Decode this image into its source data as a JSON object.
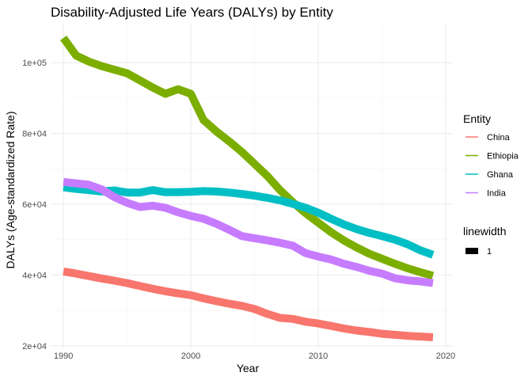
{
  "chart_data": {
    "type": "line",
    "title": "Disability-Adjusted Life Years (DALYs) by Entity",
    "xlabel": "Year",
    "ylabel": "DALYs (Age-standardized Rate)",
    "xlim": [
      1989,
      2020.5
    ],
    "ylim": [
      19500,
      111000
    ],
    "x_ticks": [
      1990,
      2000,
      2010,
      2020
    ],
    "x_tick_labels": [
      "1990",
      "2000",
      "2010",
      "2020"
    ],
    "y_ticks": [
      20000,
      40000,
      60000,
      80000,
      100000
    ],
    "y_tick_labels": [
      "2e+04",
      "4e+04",
      "6e+04",
      "8e+04",
      "1e+05"
    ],
    "grid": true,
    "legend_placement": "right",
    "legend_title": "Entity",
    "x": [
      1990,
      1991,
      1992,
      1993,
      1994,
      1995,
      1996,
      1997,
      1998,
      1999,
      2000,
      2001,
      2002,
      2003,
      2004,
      2005,
      2006,
      2007,
      2008,
      2009,
      2010,
      2011,
      2012,
      2013,
      2014,
      2015,
      2016,
      2017,
      2018,
      2019
    ],
    "series": [
      {
        "name": "China",
        "color": "#F8766D",
        "values": [
          41000,
          40400,
          39700,
          39000,
          38400,
          37700,
          36900,
          36100,
          35400,
          34800,
          34300,
          33400,
          32600,
          31900,
          31300,
          30400,
          29000,
          27900,
          27600,
          26800,
          26300,
          25600,
          24900,
          24300,
          23900,
          23400,
          23100,
          22800,
          22600,
          22400
        ]
      },
      {
        "name": "Ethiopia",
        "color": "#7CAE00",
        "values": [
          107000,
          102000,
          100300,
          99000,
          98000,
          97000,
          95000,
          93000,
          91200,
          92500,
          91200,
          83800,
          80600,
          77800,
          74800,
          71400,
          68000,
          64000,
          60600,
          57500,
          54800,
          52100,
          49800,
          47800,
          46000,
          44600,
          43200,
          41900,
          40800,
          39800
        ]
      },
      {
        "name": "Ghana",
        "color": "#00BFC4",
        "values": [
          64800,
          64300,
          64000,
          63600,
          63900,
          63300,
          63300,
          64000,
          63400,
          63400,
          63500,
          63700,
          63600,
          63300,
          62900,
          62400,
          61800,
          61100,
          60100,
          59000,
          57600,
          55900,
          54300,
          53000,
          51900,
          51000,
          50000,
          48700,
          47000,
          45700
        ]
      },
      {
        "name": "India",
        "color": "#C77CFF",
        "values": [
          66300,
          65900,
          65500,
          64200,
          62000,
          60400,
          59200,
          59600,
          59000,
          57700,
          56700,
          55900,
          54500,
          52800,
          51000,
          50400,
          49800,
          49100,
          48300,
          46200,
          45200,
          44400,
          43200,
          42300,
          41200,
          40400,
          39100,
          38500,
          38200,
          37700
        ]
      }
    ],
    "size_legend": {
      "title": "linewidth",
      "entries": [
        "1"
      ]
    }
  }
}
